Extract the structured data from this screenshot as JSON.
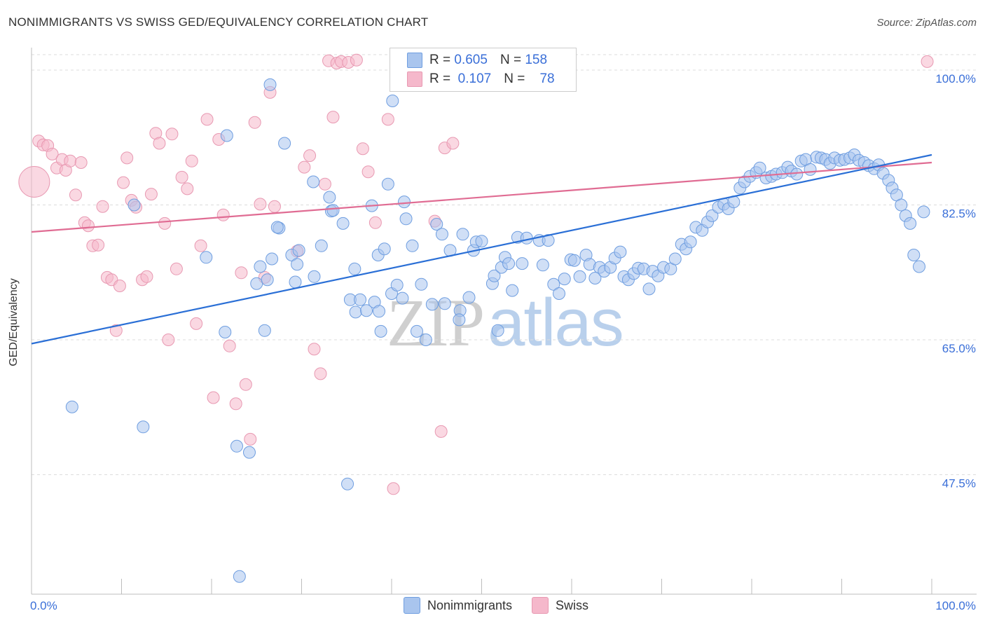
{
  "title": "NONIMMIGRANTS VS SWISS GED/EQUIVALENCY CORRELATION CHART",
  "source": "Source: ZipAtlas.com",
  "watermark": {
    "part1": "ZIP",
    "part2": "atlas"
  },
  "legend_top": {
    "rows": [
      {
        "r_label": "R = ",
        "r_value": "0.605",
        "n_label": "N = ",
        "n_value": "158",
        "color": "#a9c5ee"
      },
      {
        "r_label": "R = ",
        "r_value": "0.107",
        "n_label": "N = ",
        "n_value": "78",
        "color": "#f5b8cb"
      }
    ]
  },
  "legend_bottom": [
    {
      "label": "Nonimmigrants",
      "color": "#a9c5ee"
    },
    {
      "label": "Swiss",
      "color": "#f5b8cb"
    }
  ],
  "colors": {
    "nonimmigrants_fill": "#a9c5ee",
    "nonimmigrants_stroke": "#6f9ee0",
    "nonimmigrants_line": "#2a6fd6",
    "swiss_fill": "#f5b8cb",
    "swiss_stroke": "#e899b2",
    "swiss_line": "#e06c93",
    "tick_label": "#3a6fd8"
  },
  "chart_data": {
    "type": "scatter",
    "title": "NONIMMIGRANTS VS SWISS GED/EQUIVALENCY CORRELATION CHART",
    "xlabel": "",
    "ylabel": "GED/Equivalency",
    "xlim": [
      0,
      100
    ],
    "ylim": [
      32,
      102
    ],
    "x_tick_labels": [
      "0.0%",
      "100.0%"
    ],
    "y_ticks": [
      47.5,
      65.0,
      82.5,
      100.0
    ],
    "y_tick_labels": [
      "47.5%",
      "65.0%",
      "82.5%",
      "100.0%"
    ],
    "grid": true,
    "legend_placement": "top-center",
    "series": [
      {
        "name": "Nonimmigrants",
        "trend": {
          "x": [
            0,
            100
          ],
          "y": [
            64.5,
            89.0
          ]
        },
        "points": [
          [
            4.5,
            56.3
          ],
          [
            11.4,
            82.5
          ],
          [
            12.4,
            53.7
          ],
          [
            19.4,
            75.7
          ],
          [
            21.5,
            66.0
          ],
          [
            21.7,
            91.5
          ],
          [
            23.1,
            34.3
          ],
          [
            22.8,
            51.2
          ],
          [
            24.2,
            50.4
          ],
          [
            25.0,
            72.3
          ],
          [
            25.4,
            74.5
          ],
          [
            25.9,
            66.2
          ],
          [
            26.2,
            72.8
          ],
          [
            26.7,
            75.5
          ],
          [
            27.5,
            79.5
          ],
          [
            27.3,
            79.6
          ],
          [
            28.1,
            90.5
          ],
          [
            28.9,
            76.0
          ],
          [
            29.3,
            72.5
          ],
          [
            29.5,
            74.8
          ],
          [
            29.7,
            76.6
          ],
          [
            31.3,
            85.5
          ],
          [
            31.4,
            73.2
          ],
          [
            32.2,
            77.2
          ],
          [
            33.1,
            83.5
          ],
          [
            33.3,
            81.7
          ],
          [
            33.5,
            81.8
          ],
          [
            34.6,
            80.1
          ],
          [
            35.4,
            70.2
          ],
          [
            35.1,
            46.3
          ],
          [
            35.9,
            74.2
          ],
          [
            36.0,
            68.6
          ],
          [
            36.5,
            70.2
          ],
          [
            37.2,
            68.8
          ],
          [
            37.8,
            82.4
          ],
          [
            38.1,
            69.9
          ],
          [
            38.6,
            68.7
          ],
          [
            38.8,
            66.1
          ],
          [
            38.5,
            76.0
          ],
          [
            39.2,
            76.8
          ],
          [
            39.6,
            85.2
          ],
          [
            40.0,
            71.0
          ],
          [
            40.6,
            72.1
          ],
          [
            41.2,
            70.4
          ],
          [
            41.4,
            82.9
          ],
          [
            41.6,
            80.7
          ],
          [
            42.3,
            77.2
          ],
          [
            42.8,
            66.1
          ],
          [
            43.3,
            72.2
          ],
          [
            43.8,
            65.0
          ],
          [
            44.5,
            69.6
          ],
          [
            45.0,
            80.0
          ],
          [
            45.6,
            78.7
          ],
          [
            45.9,
            69.7
          ],
          [
            46.5,
            76.6
          ],
          [
            47.6,
            68.8
          ],
          [
            47.5,
            67.6
          ],
          [
            47.9,
            78.7
          ],
          [
            48.6,
            70.5
          ],
          [
            49.1,
            76.6
          ],
          [
            49.4,
            77.7
          ],
          [
            50.0,
            77.8
          ],
          [
            51.2,
            72.3
          ],
          [
            51.4,
            73.3
          ],
          [
            51.8,
            66.2
          ],
          [
            52.2,
            74.4
          ],
          [
            52.6,
            75.7
          ],
          [
            53.0,
            74.9
          ],
          [
            53.4,
            71.4
          ],
          [
            54.0,
            78.3
          ],
          [
            54.5,
            74.9
          ],
          [
            55.0,
            78.2
          ],
          [
            56.4,
            77.9
          ],
          [
            56.8,
            74.7
          ],
          [
            57.4,
            77.9
          ],
          [
            58.0,
            72.2
          ],
          [
            58.6,
            71.0
          ],
          [
            59.2,
            72.9
          ],
          [
            59.9,
            75.4
          ],
          [
            60.3,
            75.3
          ],
          [
            60.9,
            73.2
          ],
          [
            61.6,
            76.0
          ],
          [
            62.0,
            74.8
          ],
          [
            62.6,
            73.0
          ],
          [
            63.1,
            74.4
          ],
          [
            63.6,
            73.9
          ],
          [
            64.3,
            74.4
          ],
          [
            64.8,
            75.6
          ],
          [
            65.4,
            76.4
          ],
          [
            65.8,
            73.2
          ],
          [
            66.3,
            72.8
          ],
          [
            66.9,
            73.6
          ],
          [
            67.4,
            74.3
          ],
          [
            68.0,
            74.2
          ],
          [
            68.6,
            71.6
          ],
          [
            69.0,
            73.9
          ],
          [
            69.6,
            73.3
          ],
          [
            70.2,
            74.4
          ],
          [
            71.0,
            74.2
          ],
          [
            71.5,
            75.5
          ],
          [
            72.2,
            77.4
          ],
          [
            72.7,
            76.8
          ],
          [
            73.2,
            77.7
          ],
          [
            73.8,
            79.6
          ],
          [
            74.5,
            79.2
          ],
          [
            75.1,
            80.3
          ],
          [
            75.6,
            81.1
          ],
          [
            76.3,
            82.2
          ],
          [
            76.9,
            82.6
          ],
          [
            77.4,
            82.0
          ],
          [
            78.0,
            82.9
          ],
          [
            78.7,
            84.7
          ],
          [
            79.2,
            85.5
          ],
          [
            79.8,
            86.2
          ],
          [
            80.5,
            86.7
          ],
          [
            80.9,
            87.3
          ],
          [
            81.6,
            86.0
          ],
          [
            82.2,
            86.2
          ],
          [
            82.7,
            86.5
          ],
          [
            83.4,
            86.7
          ],
          [
            84.0,
            87.4
          ],
          [
            84.4,
            86.9
          ],
          [
            85.0,
            86.5
          ],
          [
            85.5,
            88.2
          ],
          [
            86.0,
            88.4
          ],
          [
            86.5,
            87.1
          ],
          [
            87.2,
            88.7
          ],
          [
            87.7,
            88.6
          ],
          [
            88.2,
            88.4
          ],
          [
            88.7,
            87.9
          ],
          [
            89.2,
            88.6
          ],
          [
            89.8,
            88.3
          ],
          [
            90.3,
            88.4
          ],
          [
            90.9,
            88.6
          ],
          [
            91.4,
            89.0
          ],
          [
            91.9,
            88.3
          ],
          [
            92.5,
            88.0
          ],
          [
            93.0,
            87.6
          ],
          [
            93.6,
            87.2
          ],
          [
            94.1,
            87.7
          ],
          [
            94.6,
            86.6
          ],
          [
            95.2,
            85.7
          ],
          [
            95.6,
            84.7
          ],
          [
            96.1,
            83.8
          ],
          [
            96.6,
            82.5
          ],
          [
            97.1,
            81.1
          ],
          [
            97.6,
            80.1
          ],
          [
            98.0,
            76.0
          ],
          [
            98.6,
            74.5
          ],
          [
            99.1,
            81.6
          ],
          [
            26.5,
            98.1
          ],
          [
            40.1,
            96.0
          ]
        ]
      },
      {
        "name": "Swiss",
        "trend": {
          "x": [
            0,
            100
          ],
          "y": [
            79.0,
            88.0
          ]
        },
        "points": [
          [
            0.3,
            85.5
          ],
          [
            0.8,
            90.8
          ],
          [
            1.3,
            90.3
          ],
          [
            1.8,
            90.2
          ],
          [
            2.3,
            89.1
          ],
          [
            2.8,
            87.3
          ],
          [
            3.4,
            88.4
          ],
          [
            3.8,
            87.0
          ],
          [
            4.3,
            88.2
          ],
          [
            4.9,
            83.8
          ],
          [
            5.5,
            88.0
          ],
          [
            5.9,
            80.2
          ],
          [
            6.3,
            79.8
          ],
          [
            6.8,
            77.2
          ],
          [
            7.4,
            77.3
          ],
          [
            7.9,
            82.3
          ],
          [
            8.4,
            73.1
          ],
          [
            8.9,
            72.8
          ],
          [
            9.4,
            66.2
          ],
          [
            9.8,
            72.0
          ],
          [
            10.2,
            85.4
          ],
          [
            10.6,
            88.6
          ],
          [
            11.1,
            83.1
          ],
          [
            11.6,
            82.2
          ],
          [
            12.3,
            72.8
          ],
          [
            12.8,
            73.2
          ],
          [
            13.3,
            83.9
          ],
          [
            13.8,
            91.8
          ],
          [
            14.2,
            90.5
          ],
          [
            14.8,
            80.1
          ],
          [
            15.2,
            65.0
          ],
          [
            15.6,
            91.7
          ],
          [
            16.1,
            74.2
          ],
          [
            16.7,
            86.1
          ],
          [
            17.3,
            84.6
          ],
          [
            17.8,
            88.2
          ],
          [
            18.3,
            67.1
          ],
          [
            18.8,
            77.2
          ],
          [
            19.5,
            93.6
          ],
          [
            20.2,
            57.5
          ],
          [
            20.8,
            91.0
          ],
          [
            21.3,
            81.2
          ],
          [
            22.0,
            64.2
          ],
          [
            22.7,
            56.7
          ],
          [
            23.3,
            73.7
          ],
          [
            23.8,
            59.2
          ],
          [
            24.3,
            52.1
          ],
          [
            24.8,
            93.2
          ],
          [
            25.4,
            82.6
          ],
          [
            25.9,
            73.1
          ],
          [
            26.5,
            97.1
          ],
          [
            27.0,
            82.3
          ],
          [
            29.5,
            76.5
          ],
          [
            30.3,
            87.4
          ],
          [
            30.9,
            88.9
          ],
          [
            31.4,
            63.8
          ],
          [
            32.1,
            60.6
          ],
          [
            32.6,
            85.2
          ],
          [
            33.0,
            101.2
          ],
          [
            33.5,
            93.9
          ],
          [
            33.9,
            100.9
          ],
          [
            34.4,
            101.1
          ],
          [
            35.2,
            101.0
          ],
          [
            36.1,
            101.3
          ],
          [
            36.8,
            89.8
          ],
          [
            37.4,
            86.8
          ],
          [
            38.2,
            80.2
          ],
          [
            39.6,
            93.6
          ],
          [
            40.2,
            45.7
          ],
          [
            41.7,
            101.2
          ],
          [
            42.9,
            101.0
          ],
          [
            44.1,
            101.1
          ],
          [
            44.8,
            80.4
          ],
          [
            45.5,
            53.1
          ],
          [
            45.9,
            89.9
          ],
          [
            46.8,
            90.5
          ],
          [
            53.0,
            100.9
          ],
          [
            99.5,
            101.1
          ]
        ]
      }
    ]
  }
}
